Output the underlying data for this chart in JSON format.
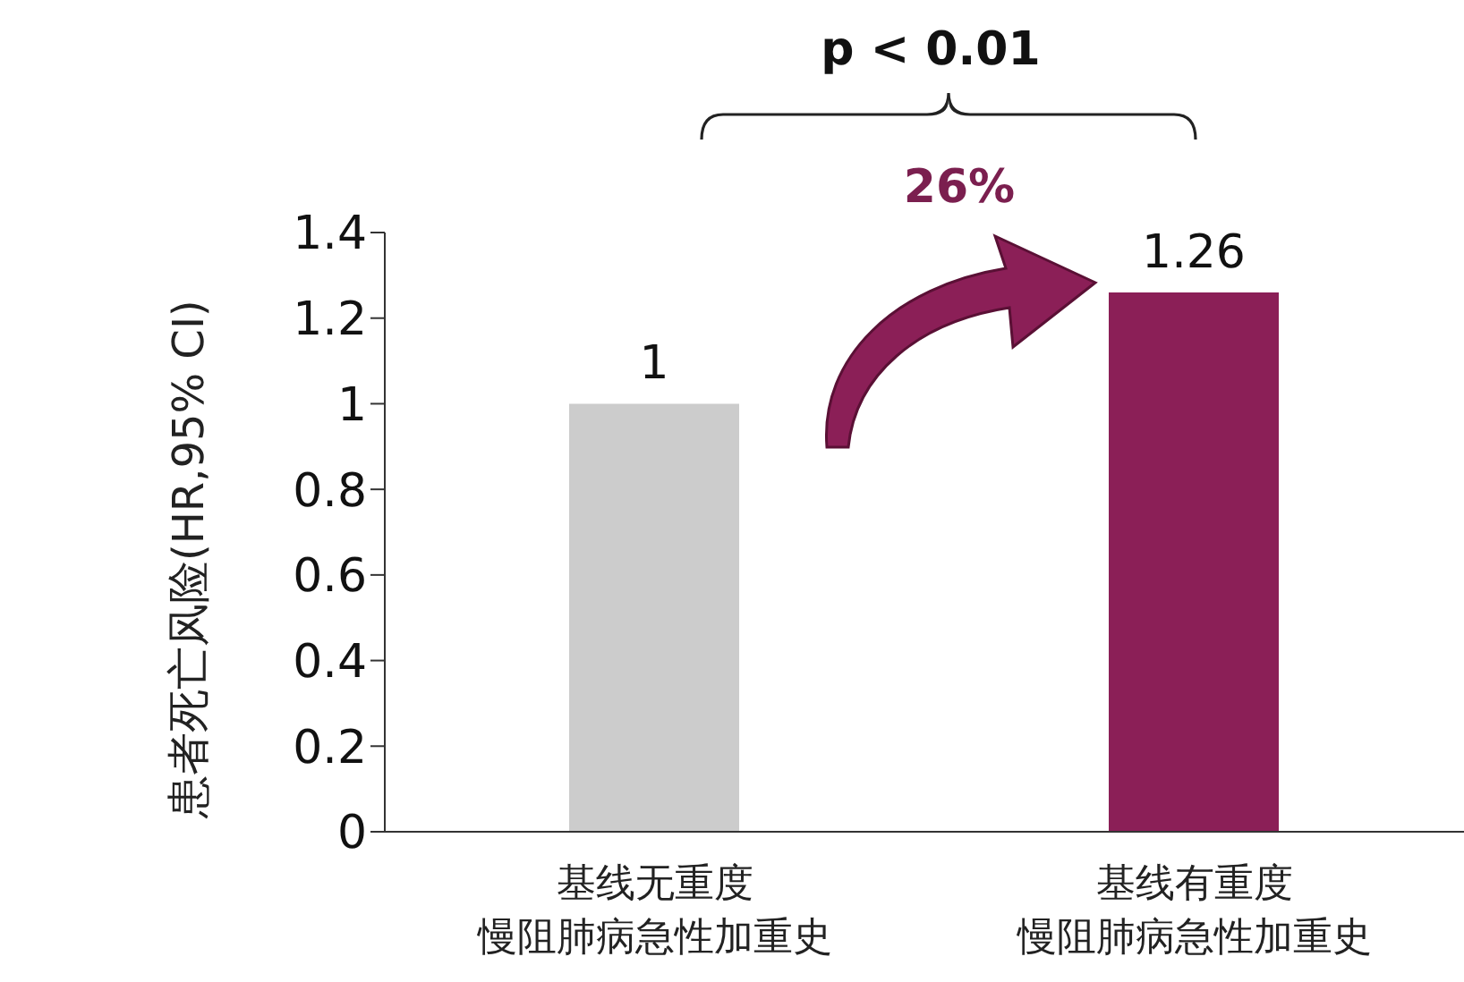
{
  "chart_data": {
    "type": "bar",
    "categories": [
      "基线无重度慢阻肺病急性加重史",
      "基线有重度慢阻肺病急性加重史"
    ],
    "values": [
      1,
      1.26
    ],
    "colors": [
      "#cccccc",
      "#8b1f57"
    ],
    "ylabel": "患者死亡风险(HR,95% CI)",
    "ylim": [
      0,
      1.4
    ],
    "yticks": [
      0,
      0.2,
      0.4,
      0.6,
      0.8,
      1,
      1.2,
      1.4
    ],
    "data_labels": true,
    "annotations": [
      "p < 0.01",
      "26%"
    ]
  }
}
